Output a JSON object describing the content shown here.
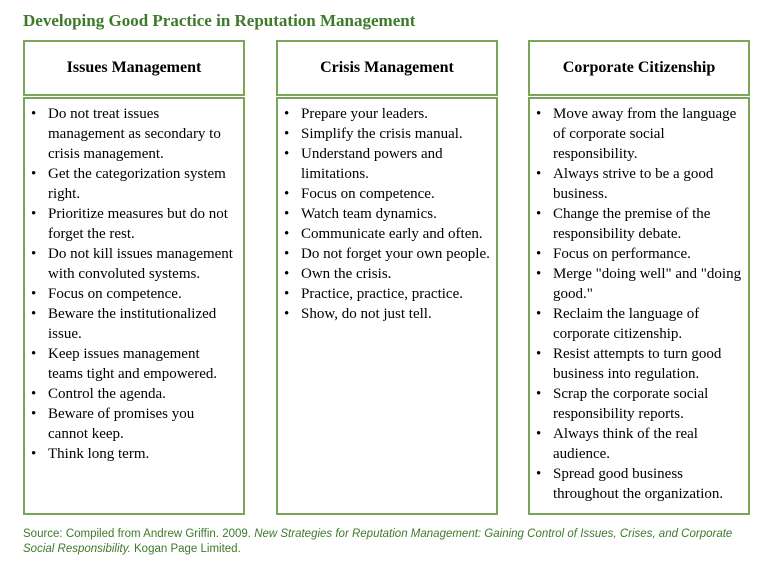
{
  "title": "Developing Good Practice in Reputation Management",
  "columns": [
    {
      "heading": "Issues Management",
      "items": [
        "Do not treat issues management as secondary to crisis management.",
        "Get the categorization system right.",
        "Prioritize measures but do not forget the rest.",
        "Do not kill issues management with convoluted systems.",
        "Focus on competence.",
        "Beware the institutionalized issue.",
        "Keep issues management teams tight and empowered.",
        "Control the agenda.",
        "Beware of promises you cannot keep.",
        "Think long term."
      ]
    },
    {
      "heading": "Crisis Management",
      "items": [
        "Prepare your leaders.",
        "Simplify the crisis manual.",
        "Understand powers and limitations.",
        "Focus on competence.",
        "Watch team dynamics.",
        "Communicate early and often.",
        "Do not forget your own people.",
        "Own the crisis.",
        "Practice, practice, practice.",
        "Show, do not just tell."
      ]
    },
    {
      "heading": "Corporate Citizenship",
      "items": [
        "Move away from the language of corporate social responsibility.",
        "Always strive to be a good business.",
        "Change the premise of the responsibility debate.",
        "Focus on performance.",
        "Merge \"doing well\" and \"doing good.\"",
        "Reclaim the language of corporate citizenship.",
        "Resist attempts to turn good business into regulation.",
        "Scrap the corporate social responsibility reports.",
        "Always think of the real audience.",
        "Spread good business throughout the organization."
      ]
    }
  ],
  "source": {
    "prefix": "Source: Compiled from Andrew Griffin. 2009. ",
    "book_title": "New Strategies for Reputation Management: Gaining Control of Issues, Crises, and Corporate Social Responsibility.",
    "suffix": " Kogan Page Limited."
  },
  "colors": {
    "accent": "#3d7a2a",
    "border": "#7aa65a"
  }
}
